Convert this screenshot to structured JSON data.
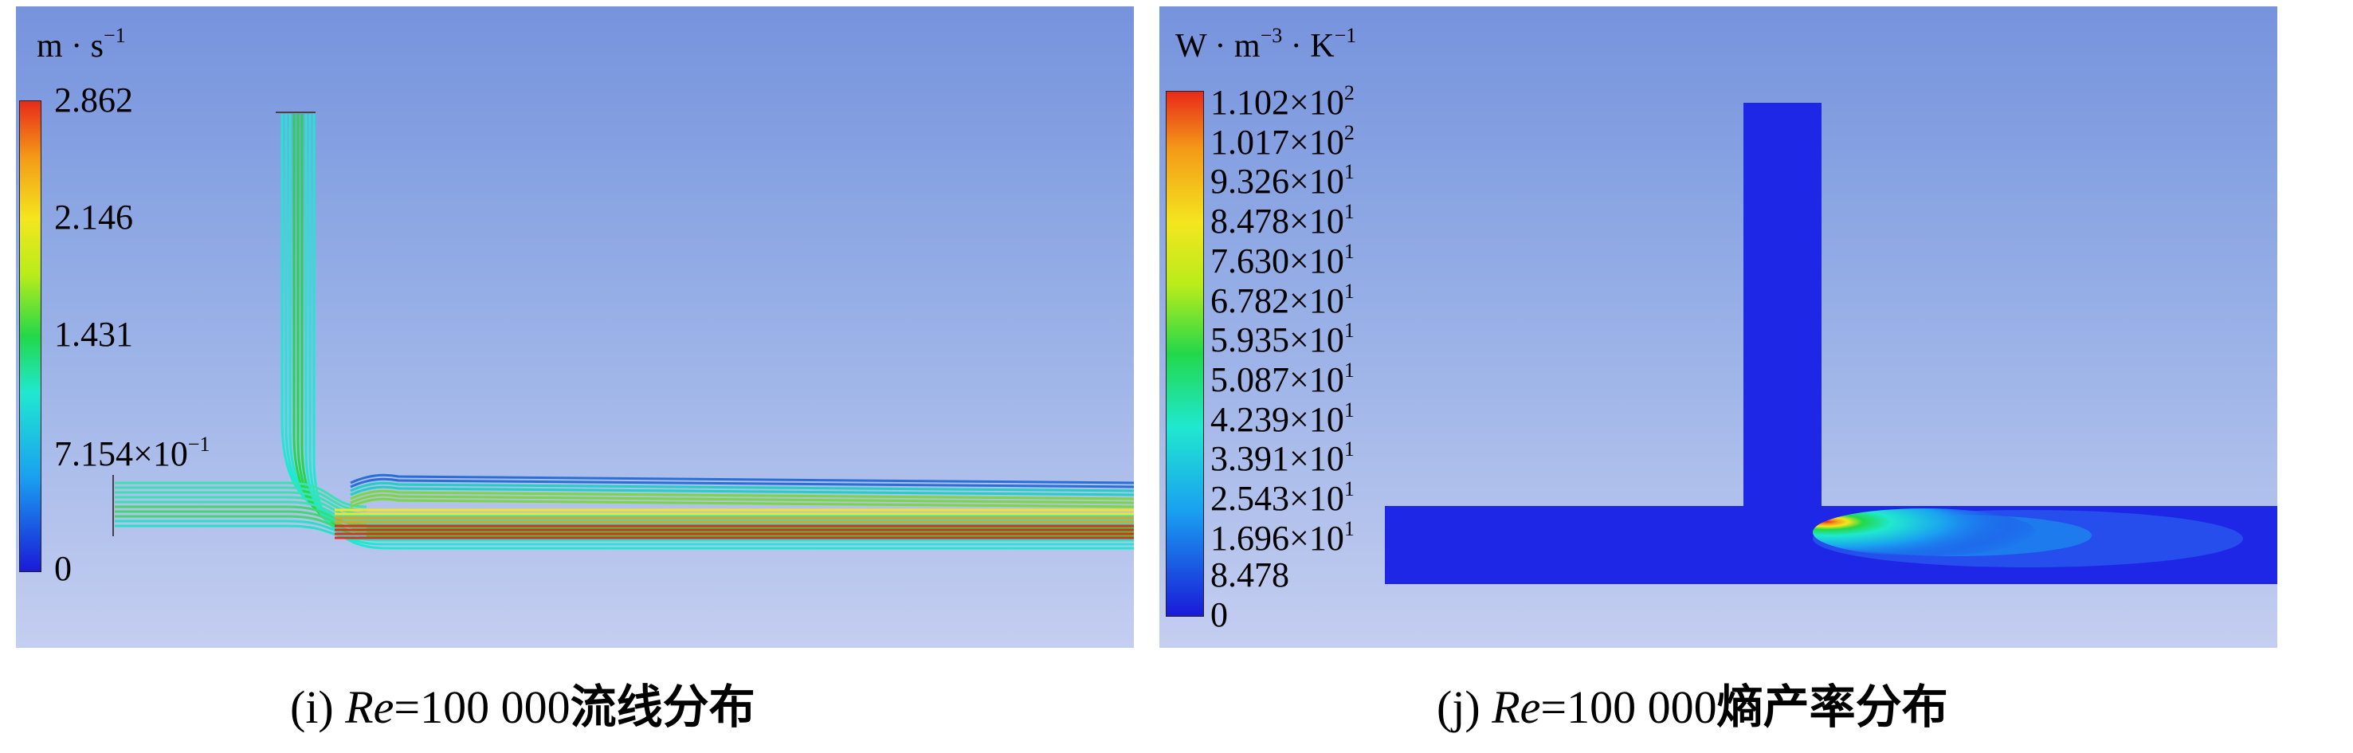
{
  "panel_i": {
    "unit_base1": "m",
    "unit_dot": "·",
    "unit_base2": "s",
    "unit_exp2": "−1",
    "ticks": [
      {
        "mantissa": "2.862",
        "exp": ""
      },
      {
        "mantissa": "2.146",
        "exp": ""
      },
      {
        "mantissa": "1.431",
        "exp": ""
      },
      {
        "mantissa": "7.154×10",
        "exp": "−1"
      },
      {
        "mantissa": "0",
        "exp": ""
      }
    ],
    "caption": {
      "label": "(i)",
      "re": "Re",
      "value": "=100 000",
      "cn": "流线分布"
    }
  },
  "panel_j": {
    "unit_base1": "W",
    "unit_dot": "·",
    "unit_base2": "m",
    "unit_exp2": "−3",
    "unit_dot2": " ·",
    "unit_base3": "K",
    "unit_exp3": "−1",
    "ticks": [
      {
        "mantissa": "1.102×10",
        "exp": "2"
      },
      {
        "mantissa": "1.017×10",
        "exp": "2"
      },
      {
        "mantissa": "9.326×10",
        "exp": "1"
      },
      {
        "mantissa": "8.478×10",
        "exp": "1"
      },
      {
        "mantissa": "7.630×10",
        "exp": "1"
      },
      {
        "mantissa": "6.782×10",
        "exp": "1"
      },
      {
        "mantissa": "5.935×10",
        "exp": "1"
      },
      {
        "mantissa": "5.087×10",
        "exp": "1"
      },
      {
        "mantissa": "4.239×10",
        "exp": "1"
      },
      {
        "mantissa": "3.391×10",
        "exp": "1"
      },
      {
        "mantissa": "2.543×10",
        "exp": "1"
      },
      {
        "mantissa": "1.696×10",
        "exp": "1"
      },
      {
        "mantissa": "8.478",
        "exp": ""
      },
      {
        "mantissa": "0",
        "exp": ""
      }
    ],
    "caption": {
      "label": "(j)",
      "re": "Re",
      "value": "=100 000",
      "cn": "熵产率分布"
    }
  },
  "colors": {
    "rainbow": [
      "#1a1ad8",
      "#1aa0f0",
      "#20e8d0",
      "#22d84a",
      "#b8ec1a",
      "#f4e61e",
      "#f49a18",
      "#e82a1a"
    ],
    "domain_blue": "#1f27e6"
  }
}
